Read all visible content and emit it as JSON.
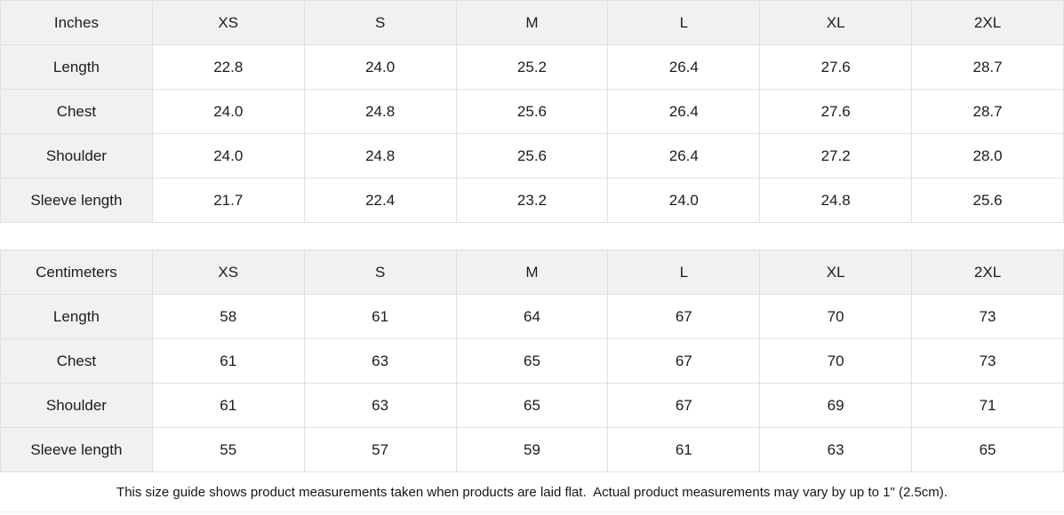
{
  "sections": [
    {
      "unit_label": "Inches",
      "sizes": [
        "XS",
        "S",
        "M",
        "L",
        "XL",
        "2XL"
      ],
      "rows": [
        {
          "label": "Length",
          "values": [
            "22.8",
            "24.0",
            "25.2",
            "26.4",
            "27.6",
            "28.7"
          ]
        },
        {
          "label": "Chest",
          "values": [
            "24.0",
            "24.8",
            "25.6",
            "26.4",
            "27.6",
            "28.7"
          ]
        },
        {
          "label": "Shoulder",
          "values": [
            "24.0",
            "24.8",
            "25.6",
            "26.4",
            "27.2",
            "28.0"
          ]
        },
        {
          "label": "Sleeve length",
          "values": [
            "21.7",
            "22.4",
            "23.2",
            "24.0",
            "24.8",
            "25.6"
          ]
        }
      ]
    },
    {
      "unit_label": "Centimeters",
      "sizes": [
        "XS",
        "S",
        "M",
        "L",
        "XL",
        "2XL"
      ],
      "rows": [
        {
          "label": "Length",
          "values": [
            "58",
            "61",
            "64",
            "67",
            "70",
            "73"
          ]
        },
        {
          "label": "Chest",
          "values": [
            "61",
            "63",
            "65",
            "67",
            "70",
            "73"
          ]
        },
        {
          "label": "Shoulder",
          "values": [
            "61",
            "63",
            "65",
            "67",
            "69",
            "71"
          ]
        },
        {
          "label": "Sleeve length",
          "values": [
            "55",
            "57",
            "59",
            "61",
            "63",
            "65"
          ]
        }
      ]
    }
  ],
  "footer": {
    "note": "This size guide shows product measurements taken when products are laid flat.  Actual product measurements may vary by up to 1\" (2.5cm)."
  },
  "colors": {
    "header_bg": "#f1f1f1",
    "border": "#e0e0e0",
    "text": "#1c1c1c"
  }
}
